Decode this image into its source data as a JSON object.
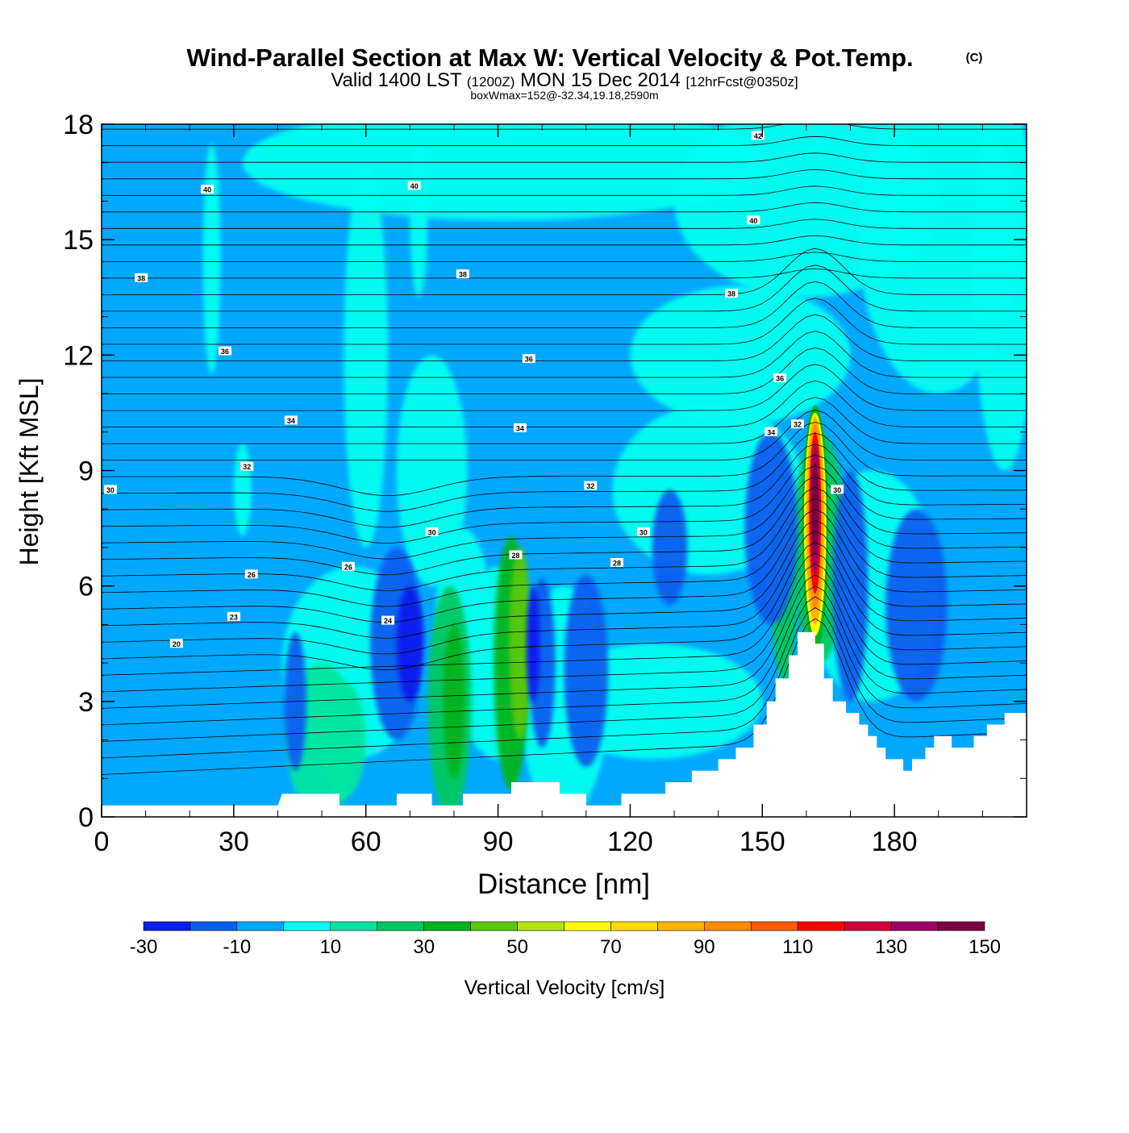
{
  "header": {
    "title": "Wind-Parallel Section at Max W: Vertical Velocity & Pot.Temp.",
    "copyright_mark": "(C)",
    "subtitle_prefix": "Valid 1400 LST",
    "subtitle_utc": "(1200Z)",
    "subtitle_date": "MON 15 Dec 2014",
    "subtitle_forecast": "[12hrFcst@0350z]",
    "box_info": "boxWmax=152@-32.34,19.18,2590m"
  },
  "chart_data": {
    "type": "heatmap",
    "description_kind": "cross-section",
    "xlabel": "Distance [nm]",
    "ylabel": "Height [Kft MSL]",
    "xlim": [
      0,
      210
    ],
    "ylim": [
      0,
      18
    ],
    "x_ticks": [
      0,
      30,
      60,
      90,
      120,
      150,
      180
    ],
    "y_ticks": [
      0,
      3,
      6,
      9,
      12,
      15,
      18
    ],
    "grid": false,
    "colorbar": {
      "label": "Vertical Velocity [cm/s]",
      "placement": "bottom",
      "boundaries": [
        -30,
        -20,
        -10,
        0,
        10,
        20,
        30,
        40,
        50,
        60,
        70,
        80,
        90,
        100,
        110,
        120,
        130,
        140,
        150
      ],
      "tick_labels": [
        "-30",
        "-10",
        "10",
        "30",
        "50",
        "70",
        "90",
        "110",
        "130",
        "150"
      ],
      "colors": [
        "#0a1ef0",
        "#0a5ef0",
        "#00a8ff",
        "#00fff0",
        "#00e6a0",
        "#00c864",
        "#00b41e",
        "#5ac80a",
        "#b4e60a",
        "#ffff00",
        "#ffdc00",
        "#ffb400",
        "#ff8c00",
        "#ff5a00",
        "#ff0000",
        "#d2003c",
        "#9c0064",
        "#7a0040"
      ]
    },
    "max_w": {
      "value": 152,
      "x": 162,
      "z": 8.5
    },
    "terrain": [
      [
        0,
        0.3
      ],
      [
        40,
        0.3
      ],
      [
        41,
        0.6
      ],
      [
        48,
        0.6
      ],
      [
        54,
        0.6
      ],
      [
        54,
        0.3
      ],
      [
        60,
        0.3
      ],
      [
        62,
        0.3
      ],
      [
        67,
        0.3
      ],
      [
        67,
        0.6
      ],
      [
        75,
        0.6
      ],
      [
        75,
        0.3
      ],
      [
        82,
        0.3
      ],
      [
        82,
        0.6
      ],
      [
        93,
        0.6
      ],
      [
        93,
        0.9
      ],
      [
        104,
        0.9
      ],
      [
        104,
        0.6
      ],
      [
        110,
        0.6
      ],
      [
        110,
        0.3
      ],
      [
        118,
        0.3
      ],
      [
        118,
        0.6
      ],
      [
        128,
        0.6
      ],
      [
        128,
        0.9
      ],
      [
        134,
        0.9
      ],
      [
        134,
        1.2
      ],
      [
        140,
        1.2
      ],
      [
        140,
        1.5
      ],
      [
        144,
        1.5
      ],
      [
        144,
        1.8
      ],
      [
        148,
        1.8
      ],
      [
        148,
        2.4
      ],
      [
        151,
        2.4
      ],
      [
        151,
        3.0
      ],
      [
        153,
        3.0
      ],
      [
        153,
        3.6
      ],
      [
        156,
        3.6
      ],
      [
        156,
        4.2
      ],
      [
        158,
        4.2
      ],
      [
        158,
        4.8
      ],
      [
        162,
        4.8
      ],
      [
        162,
        4.5
      ],
      [
        164,
        4.5
      ],
      [
        164,
        3.6
      ],
      [
        166,
        3.6
      ],
      [
        166,
        3.0
      ],
      [
        169,
        3.0
      ],
      [
        169,
        2.7
      ],
      [
        172,
        2.7
      ],
      [
        172,
        2.4
      ],
      [
        174,
        2.4
      ],
      [
        174,
        2.1
      ],
      [
        176,
        2.1
      ],
      [
        176,
        1.8
      ],
      [
        178,
        1.8
      ],
      [
        178,
        1.5
      ],
      [
        182,
        1.5
      ],
      [
        182,
        1.2
      ],
      [
        184,
        1.2
      ],
      [
        184,
        1.5
      ],
      [
        187,
        1.5
      ],
      [
        187,
        1.8
      ],
      [
        189,
        1.8
      ],
      [
        189,
        2.1
      ],
      [
        193,
        2.1
      ],
      [
        193,
        1.8
      ],
      [
        198,
        1.8
      ],
      [
        198,
        2.1
      ],
      [
        201,
        2.1
      ],
      [
        201,
        2.4
      ],
      [
        205,
        2.4
      ],
      [
        205,
        2.7
      ],
      [
        210,
        2.7
      ]
    ],
    "theta_labels": [
      {
        "value": "20",
        "x": 17,
        "z": 4.5
      },
      {
        "value": "23",
        "x": 30,
        "z": 5.2
      },
      {
        "value": "24",
        "x": 65,
        "z": 5.1
      },
      {
        "value": "26",
        "x": 34,
        "z": 6.3
      },
      {
        "value": "26",
        "x": 56,
        "z": 6.5
      },
      {
        "value": "28",
        "x": 94,
        "z": 6.8
      },
      {
        "value": "28",
        "x": 117,
        "z": 6.6
      },
      {
        "value": "30",
        "x": 2,
        "z": 8.5
      },
      {
        "value": "30",
        "x": 75,
        "z": 7.4
      },
      {
        "value": "30",
        "x": 123,
        "z": 7.4
      },
      {
        "value": "30",
        "x": 167,
        "z": 8.5
      },
      {
        "value": "32",
        "x": 33,
        "z": 9.1
      },
      {
        "value": "32",
        "x": 111,
        "z": 8.6
      },
      {
        "value": "32",
        "x": 158,
        "z": 10.2
      },
      {
        "value": "34",
        "x": 43,
        "z": 10.3
      },
      {
        "value": "34",
        "x": 95,
        "z": 10.1
      },
      {
        "value": "34",
        "x": 152,
        "z": 10.0
      },
      {
        "value": "36",
        "x": 28,
        "z": 12.1
      },
      {
        "value": "36",
        "x": 97,
        "z": 11.9
      },
      {
        "value": "36",
        "x": 154,
        "z": 11.4
      },
      {
        "value": "38",
        "x": 9,
        "z": 14.0
      },
      {
        "value": "38",
        "x": 82,
        "z": 14.1
      },
      {
        "value": "38",
        "x": 143,
        "z": 13.6
      },
      {
        "value": "40",
        "x": 24,
        "z": 16.3
      },
      {
        "value": "40",
        "x": 71,
        "z": 16.4
      },
      {
        "value": "40",
        "x": 148,
        "z": 15.5
      },
      {
        "value": "42",
        "x": 149,
        "z": 17.7
      }
    ]
  }
}
